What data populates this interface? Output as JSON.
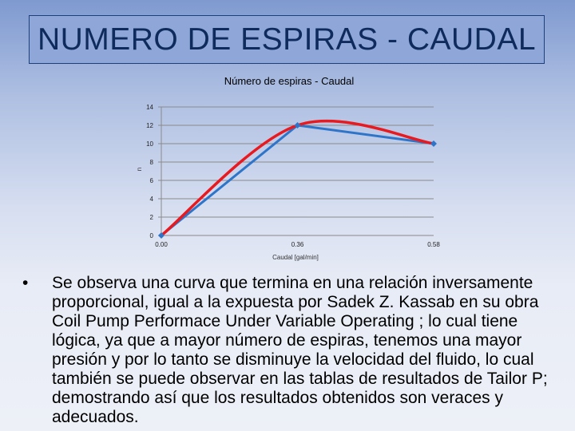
{
  "slide": {
    "title": "NUMERO DE ESPIRAS - CAUDAL",
    "bullet_symbol": "•",
    "bullet_text": "Se observa una curva que termina en una relación inversamente proporcional, igual a la expuesta por Sadek Z. Kassab en su obra Coil Pump Performace Under Variable Operating ; lo cual tiene lógica, ya que a mayor número de espiras, tenemos una mayor presión y por lo tanto se disminuye la velocidad del fluido, lo cual también se puede observar en las tablas de resultados de Tailor P; demostrando así que los resultados obtenidos son veraces y adecuados."
  },
  "chart_data": {
    "type": "line",
    "title": "Número de espiras - Caudal",
    "xlabel": "Caudal [gal/min]",
    "ylabel": "n",
    "x_tick_labels": [
      "0.00",
      "0.36",
      "0.58"
    ],
    "y_ticks": [
      0,
      2,
      4,
      6,
      8,
      10,
      12,
      14
    ],
    "ylim": [
      0,
      14
    ],
    "grid": true,
    "legend": "none",
    "series": [
      {
        "values": [
          0,
          12,
          10
        ],
        "color": "#2e75c9",
        "marker": "diamond"
      },
      {
        "values": [
          0,
          12,
          10
        ],
        "color": "#e8191f",
        "smooth": true
      }
    ]
  }
}
